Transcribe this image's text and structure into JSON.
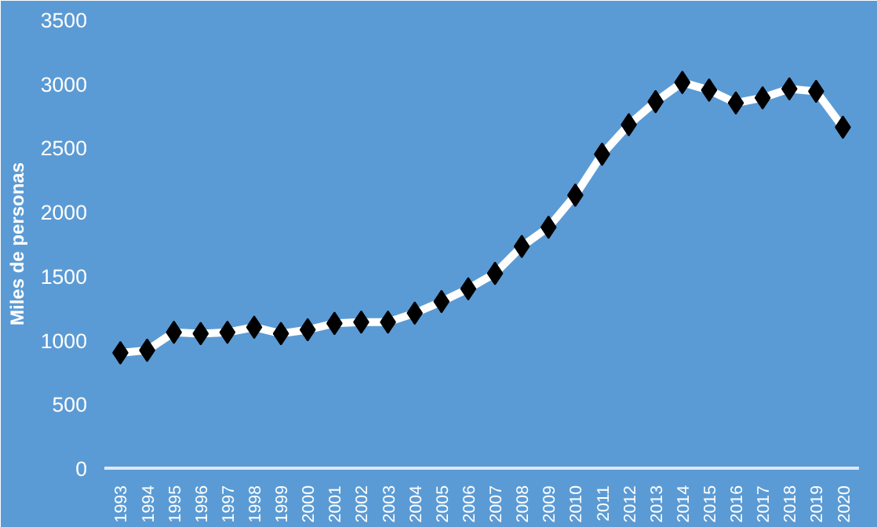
{
  "chart_data": {
    "type": "line",
    "ylabel": "Miles de personas",
    "categories": [
      "1993",
      "1994",
      "1995",
      "1996",
      "1997",
      "1998",
      "1999",
      "2000",
      "2001",
      "2002",
      "2003",
      "2004",
      "2005",
      "2006",
      "2007",
      "2008",
      "2009",
      "2010",
      "2011",
      "2012",
      "2013",
      "2014",
      "2015",
      "2016",
      "2017",
      "2018",
      "2019",
      "2020"
    ],
    "series": [
      {
        "color": "#ffffff",
        "values": [
          900,
          920,
          1060,
          1050,
          1060,
          1100,
          1050,
          1080,
          1130,
          1140,
          1140,
          1210,
          1300,
          1400,
          1520,
          1730,
          1880,
          2130,
          2450,
          2680,
          2860,
          3010,
          2950,
          2850,
          2890,
          2960,
          2940,
          2660
        ]
      }
    ],
    "ylim": [
      0,
      3500
    ],
    "yticks": [
      0,
      500,
      1000,
      1500,
      2000,
      2500,
      3000,
      3500
    ],
    "grid": false,
    "marker": "diamond",
    "line_style": "solid"
  }
}
